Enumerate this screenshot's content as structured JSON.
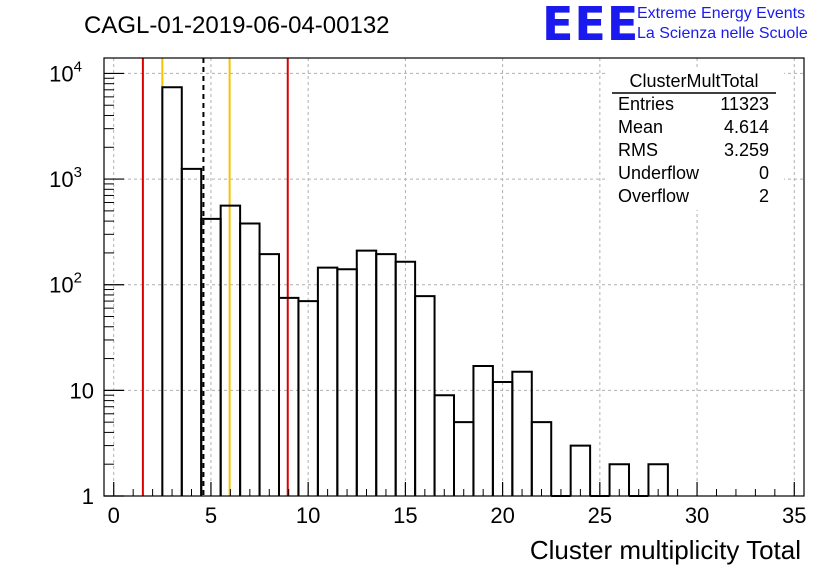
{
  "chart_data": {
    "type": "bar",
    "title": "CAGL-01-2019-06-04-00132",
    "xlabel": "Cluster multiplicity Total",
    "ylabel": "",
    "xlim": [
      -0.5,
      35.5
    ],
    "ylog": true,
    "ylim": [
      1,
      14000
    ],
    "grid": true,
    "bin_width": 1,
    "x_ticks": [
      0,
      5,
      10,
      15,
      20,
      25,
      30,
      35
    ],
    "y_ticks": [
      {
        "value": 1,
        "label": "1"
      },
      {
        "value": 10,
        "label": "10"
      },
      {
        "value": 100,
        "label": "10",
        "exp": "2"
      },
      {
        "value": 1000,
        "label": "10",
        "exp": "3"
      },
      {
        "value": 10000,
        "label": "10",
        "exp": "4"
      }
    ],
    "bins": [
      {
        "x": 3,
        "y": 7400
      },
      {
        "x": 4,
        "y": 1250
      },
      {
        "x": 5,
        "y": 420
      },
      {
        "x": 6,
        "y": 560
      },
      {
        "x": 7,
        "y": 380
      },
      {
        "x": 8,
        "y": 195
      },
      {
        "x": 9,
        "y": 75
      },
      {
        "x": 10,
        "y": 70
      },
      {
        "x": 11,
        "y": 145
      },
      {
        "x": 12,
        "y": 140
      },
      {
        "x": 13,
        "y": 210
      },
      {
        "x": 14,
        "y": 195
      },
      {
        "x": 15,
        "y": 165
      },
      {
        "x": 16,
        "y": 78
      },
      {
        "x": 17,
        "y": 9
      },
      {
        "x": 18,
        "y": 5
      },
      {
        "x": 19,
        "y": 17
      },
      {
        "x": 20,
        "y": 12
      },
      {
        "x": 21,
        "y": 15
      },
      {
        "x": 22,
        "y": 5
      },
      {
        "x": 23,
        "y": 1
      },
      {
        "x": 24,
        "y": 3
      },
      {
        "x": 25,
        "y": 1
      },
      {
        "x": 26,
        "y": 2
      },
      {
        "x": 27,
        "y": 1
      },
      {
        "x": 28,
        "y": 2
      }
    ],
    "vertical_lines": [
      {
        "x": 1.5,
        "color": "#dd0000",
        "style": "solid"
      },
      {
        "x": 2.5,
        "color": "#f5c400",
        "style": "solid"
      },
      {
        "x": 4.614,
        "color": "#000000",
        "style": "dashed"
      },
      {
        "x": 5.96,
        "color": "#f5c400",
        "style": "solid"
      },
      {
        "x": 8.95,
        "color": "#dd0000",
        "style": "solid"
      }
    ],
    "stats": {
      "name": "ClusterMultTotal",
      "rows": [
        {
          "label": "Entries",
          "value": "11323"
        },
        {
          "label": "Mean",
          "value": "4.614"
        },
        {
          "label": "RMS",
          "value": "3.259"
        },
        {
          "label": "Underflow",
          "value": "0"
        },
        {
          "label": "Overflow",
          "value": "2"
        }
      ]
    }
  },
  "logo": {
    "mark": "EEE",
    "line1": "Extreme Energy Events",
    "line2": "La Scienza nelle Scuole",
    "color": "#1a1aee"
  }
}
